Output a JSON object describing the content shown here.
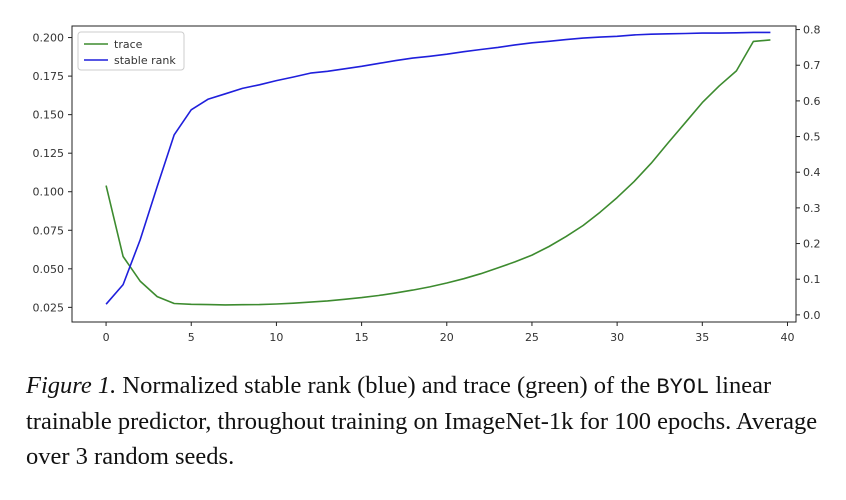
{
  "chart_data": {
    "type": "line",
    "title": "",
    "xlabel": "",
    "ylabel": "",
    "xlim": [
      -2,
      40.5
    ],
    "ylim_left": [
      0.0155,
      0.2075
    ],
    "ylim_right": [
      -0.02,
      0.81
    ],
    "grid": false,
    "legend_position": "top-left",
    "x_ticks": [
      0,
      5,
      10,
      15,
      20,
      25,
      30,
      35,
      40
    ],
    "x_tick_labels": [
      "0",
      "5",
      "10",
      "15",
      "20",
      "25",
      "30",
      "35",
      "40"
    ],
    "y_left_ticks": [
      0.025,
      0.05,
      0.075,
      0.1,
      0.125,
      0.15,
      0.175,
      0.2
    ],
    "y_left_tick_labels": [
      "0.025",
      "0.050",
      "0.075",
      "0.100",
      "0.125",
      "0.150",
      "0.175",
      "0.200"
    ],
    "y_right_ticks": [
      0.0,
      0.1,
      0.2,
      0.3,
      0.4,
      0.5,
      0.6,
      0.7,
      0.8
    ],
    "y_right_tick_labels": [
      "0.0",
      "0.1",
      "0.2",
      "0.3",
      "0.4",
      "0.5",
      "0.6",
      "0.7",
      "0.8"
    ],
    "x": [
      0,
      1,
      2,
      3,
      4,
      5,
      6,
      7,
      8,
      9,
      10,
      11,
      12,
      13,
      14,
      15,
      16,
      17,
      18,
      19,
      20,
      21,
      22,
      23,
      24,
      25,
      26,
      27,
      28,
      29,
      30,
      31,
      32,
      33,
      34,
      35,
      36,
      37,
      38,
      39
    ],
    "series": [
      {
        "name": "trace",
        "color": "#3d8b2f",
        "axis": "left",
        "values": [
          0.104,
          0.058,
          0.042,
          0.032,
          0.0275,
          0.027,
          0.0268,
          0.0266,
          0.0267,
          0.0268,
          0.0272,
          0.0277,
          0.0284,
          0.0292,
          0.0302,
          0.0313,
          0.0327,
          0.0344,
          0.0362,
          0.0383,
          0.0408,
          0.0436,
          0.0468,
          0.0506,
          0.0545,
          0.0589,
          0.0645,
          0.0709,
          0.0781,
          0.0867,
          0.0962,
          0.1067,
          0.1185,
          0.1318,
          0.1448,
          0.1578,
          0.1687,
          0.1784,
          0.1975,
          0.1985
        ]
      },
      {
        "name": "stable rank",
        "color": "#1f1fdc",
        "axis": "right",
        "values": [
          0.03,
          0.085,
          0.21,
          0.36,
          0.505,
          0.575,
          0.605,
          0.62,
          0.635,
          0.645,
          0.657,
          0.667,
          0.678,
          0.683,
          0.69,
          0.697,
          0.705,
          0.713,
          0.72,
          0.725,
          0.731,
          0.738,
          0.744,
          0.75,
          0.757,
          0.763,
          0.767,
          0.772,
          0.776,
          0.779,
          0.781,
          0.785,
          0.787,
          0.788,
          0.789,
          0.79,
          0.79,
          0.791,
          0.792,
          0.792
        ]
      }
    ]
  },
  "caption": {
    "label": "Figure 1.",
    "text_1": " Normalized stable rank (blue) and trace (green) of the ",
    "mono": "BYOL",
    "text_2": " linear trainable predictor, throughout training on ImageNet-1k for 100 epochs. Average over 3 random seeds."
  }
}
